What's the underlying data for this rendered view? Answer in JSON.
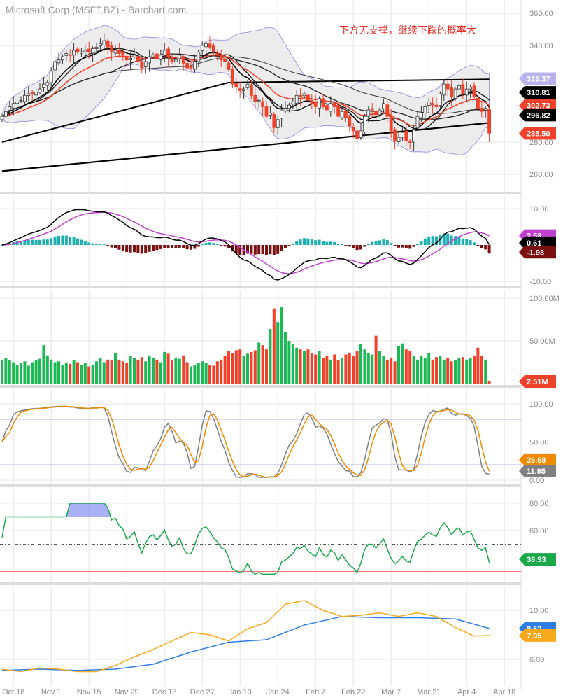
{
  "header": {
    "title": "Microsoft Corp (MSFT.BZ) - Barchart.com",
    "annotation": "下方无支撑，继续下跌的概率大"
  },
  "colors": {
    "up": "#1db954",
    "down": "#f0412a",
    "candle_up": "#ffffff",
    "bb_fill": "#ececec",
    "bb_line": "#8f86e0",
    "macd_line": "#000000",
    "macd_signal": "#c040d0",
    "hist_up": "#1eb0b0",
    "hist_down": "#7a1010",
    "stoch_k": "#808080",
    "stoch_d": "#f08a00",
    "rsi": "#1aa84a",
    "rsi_fill": "#6f7ff0",
    "ind_orange": "#f7a81b",
    "ind_blue": "#2f7de8"
  },
  "chart_data": {
    "type": "candlestick",
    "x_ticks": [
      "Oct 18",
      "Nov 1",
      "Nov 15",
      "Nov 29",
      "Dec 13",
      "Dec 27",
      "Jan 10",
      "Jan 24",
      "Feb 7",
      "Feb 22",
      "Mar 7",
      "Mar 21",
      "Apr 4",
      "Apr 18"
    ],
    "x_tick_index": [
      3,
      13,
      23,
      33,
      43,
      53,
      63,
      73,
      83,
      93,
      103,
      113,
      123,
      133
    ],
    "price": {
      "yticks": [
        "360.00",
        "340.00",
        "280.00",
        "260.00"
      ],
      "ytick_values": [
        360,
        340,
        280,
        260
      ],
      "ylim": [
        250,
        365
      ],
      "closes": [
        296,
        299,
        302,
        304,
        305,
        306,
        309,
        310,
        310,
        311,
        313,
        316,
        317,
        324,
        330,
        331,
        333,
        335,
        334,
        337,
        336,
        336,
        337,
        336,
        338,
        339,
        341,
        343,
        339,
        336,
        337,
        335,
        334,
        331,
        332,
        334,
        330,
        326,
        330,
        333,
        334,
        332,
        334,
        337,
        333,
        330,
        331,
        334,
        329,
        326,
        326,
        330,
        336,
        340,
        341,
        339,
        336,
        334,
        331,
        330,
        325,
        316,
        314,
        312,
        313,
        316,
        309,
        305,
        306,
        302,
        296,
        298,
        289,
        294,
        300,
        301,
        303,
        305,
        309,
        308,
        310,
        306,
        304,
        302,
        307,
        302,
        300,
        304,
        302,
        296,
        299,
        295,
        290,
        287,
        282,
        287,
        296,
        300,
        300,
        297,
        300,
        304,
        296,
        287,
        281,
        283,
        286,
        281,
        280,
        288,
        296,
        298,
        302,
        305,
        303,
        302,
        310,
        316,
        313,
        308,
        313,
        315,
        310,
        313,
        314,
        308,
        301,
        299,
        301,
        285.5
      ],
      "ma200": [
        262,
        292
      ],
      "ma100": [
        {
          "i": 0,
          "v": 280
        },
        {
          "i": 60,
          "v": 317
        },
        {
          "i": 129,
          "v": 319
        }
      ],
      "tags": [
        {
          "v": 319.37,
          "label": "319.37",
          "bg": "#b9b3ec",
          "fg": "#ffffff"
        },
        {
          "v": 310.81,
          "label": "310.81",
          "bg": "#000000",
          "fg": "#ffffff"
        },
        {
          "v": 302.73,
          "label": "302.73",
          "bg": "#f0412a",
          "fg": "#ffffff"
        },
        {
          "v": 296.82,
          "label": "296.82",
          "bg": "#000000",
          "fg": "#ffffff"
        },
        {
          "v": 285.5,
          "label": "285.50",
          "bg": "#f0412a",
          "fg": "#ffffff"
        }
      ]
    },
    "macd": {
      "yticks": [
        "10.00",
        "-10.00"
      ],
      "ytick_values": [
        10,
        -10
      ],
      "tags": [
        {
          "v": 2.58,
          "label": "2.58",
          "bg": "#c040d0"
        },
        {
          "v": 0.61,
          "label": "0.61",
          "bg": "#000000"
        },
        {
          "v": -1.98,
          "label": "-1.98",
          "bg": "#7a1010"
        }
      ]
    },
    "volume": {
      "unit": "M",
      "yticks": [
        "100.00M",
        "50.00M"
      ],
      "ytick_values": [
        100,
        50
      ],
      "values": [
        28,
        30,
        27,
        25,
        22,
        24,
        26,
        21,
        25,
        27,
        29,
        45,
        33,
        28,
        25,
        26,
        22,
        24,
        23,
        27,
        25,
        22,
        24,
        20,
        22,
        26,
        30,
        25,
        28,
        27,
        36,
        28,
        26,
        24,
        32,
        30,
        28,
        31,
        26,
        33,
        30,
        28,
        25,
        37,
        35,
        27,
        30,
        29,
        33,
        25,
        20,
        22,
        24,
        26,
        24,
        22,
        21,
        26,
        28,
        32,
        38,
        36,
        39,
        40,
        32,
        35,
        37,
        39,
        48,
        45,
        40,
        64,
        88,
        72,
        90,
        60,
        50,
        46,
        42,
        40,
        38,
        40,
        36,
        34,
        38,
        30,
        32,
        28,
        34,
        27,
        30,
        34,
        36,
        32,
        38,
        46,
        40,
        36,
        34,
        56,
        38,
        32,
        28,
        30,
        26,
        44,
        47,
        40,
        38,
        32,
        28,
        32,
        30,
        36,
        28,
        31,
        32,
        28,
        30,
        26,
        27,
        30,
        31,
        28,
        30,
        32,
        42,
        32,
        28,
        2.51
      ],
      "tags": [
        {
          "v": 2.51,
          "label": "2.51M",
          "bg": "#f0412a"
        }
      ]
    },
    "stochastic": {
      "yticks": [
        "100.00",
        "50.00",
        "0.00"
      ],
      "ytick_values": [
        100,
        50,
        0
      ],
      "levels": [
        80,
        50,
        20
      ],
      "tags": [
        {
          "v": 26.68,
          "label": "26.68",
          "bg": "#f08a00"
        },
        {
          "v": 11.95,
          "label": "11.95",
          "bg": "#808080"
        }
      ]
    },
    "rsi": {
      "yticks": [
        "80.00",
        "60.00"
      ],
      "ytick_values": [
        80,
        60
      ],
      "levels": [
        70,
        50,
        30
      ],
      "tags": [
        {
          "v": 38.93,
          "label": "38.93",
          "bg": "#1aa84a"
        }
      ]
    },
    "indicator": {
      "yticks": [
        "10.00",
        "6.00"
      ],
      "ytick_values": [
        10,
        6
      ],
      "orange": [
        {
          "i": 0,
          "v": 5.2
        },
        {
          "i": 5,
          "v": 5.0
        },
        {
          "i": 10,
          "v": 5.3
        },
        {
          "i": 15,
          "v": 5.2
        },
        {
          "i": 20,
          "v": 5.0
        },
        {
          "i": 25,
          "v": 5.0
        },
        {
          "i": 30,
          "v": 5.5
        },
        {
          "i": 35,
          "v": 6.2
        },
        {
          "i": 40,
          "v": 6.8
        },
        {
          "i": 45,
          "v": 7.5
        },
        {
          "i": 50,
          "v": 8.2
        },
        {
          "i": 55,
          "v": 8.0
        },
        {
          "i": 60,
          "v": 7.5
        },
        {
          "i": 65,
          "v": 8.5
        },
        {
          "i": 70,
          "v": 9.0
        },
        {
          "i": 75,
          "v": 10.5
        },
        {
          "i": 80,
          "v": 10.8
        },
        {
          "i": 85,
          "v": 10.0
        },
        {
          "i": 90,
          "v": 9.5
        },
        {
          "i": 95,
          "v": 9.6
        },
        {
          "i": 100,
          "v": 9.8
        },
        {
          "i": 105,
          "v": 9.5
        },
        {
          "i": 110,
          "v": 9.8
        },
        {
          "i": 115,
          "v": 9.5
        },
        {
          "i": 120,
          "v": 8.6
        },
        {
          "i": 125,
          "v": 7.9
        },
        {
          "i": 129,
          "v": 7.95
        }
      ],
      "blue": [
        {
          "i": 0,
          "v": 5.1
        },
        {
          "i": 10,
          "v": 5.2
        },
        {
          "i": 20,
          "v": 5.1
        },
        {
          "i": 30,
          "v": 5.2
        },
        {
          "i": 40,
          "v": 5.6
        },
        {
          "i": 50,
          "v": 6.6
        },
        {
          "i": 60,
          "v": 7.4
        },
        {
          "i": 70,
          "v": 7.6
        },
        {
          "i": 80,
          "v": 8.8
        },
        {
          "i": 90,
          "v": 9.5
        },
        {
          "i": 100,
          "v": 9.4
        },
        {
          "i": 110,
          "v": 9.4
        },
        {
          "i": 120,
          "v": 9.3
        },
        {
          "i": 129,
          "v": 8.52
        }
      ],
      "tags": [
        {
          "v": 8.52,
          "label": "8.52",
          "bg": "#2f7de8"
        },
        {
          "v": 7.95,
          "label": "7.95",
          "bg": "#f7a81b"
        }
      ]
    }
  }
}
